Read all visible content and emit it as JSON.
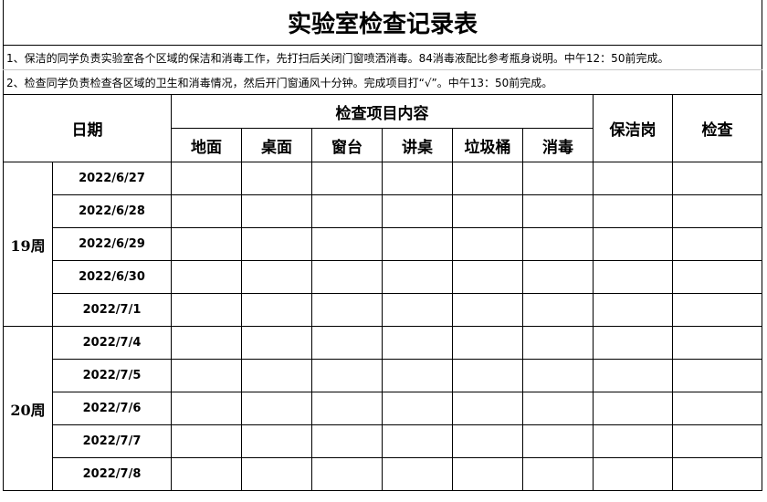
{
  "title": "实验室检查记录表",
  "notes": [
    "1、保洁的同学负责实验室各个区域的保洁和消毒工作，先打扫后关闭门窗喷洒消毒。84消毒液配比参考瓶身说明。中午12：50前完成。",
    "2、检查同学负责检查各区域的卫生和消毒情况，然后开门窗通风十分钟。完成项目打“√”。中午13：50前完成。"
  ],
  "headers": {
    "date": "日期",
    "items_group": "检查项目内容",
    "items": [
      "地面",
      "桌面",
      "窗台",
      "讲桌",
      "垃圾桶",
      "消毒"
    ],
    "cleaner": "保洁岗",
    "inspector": "检查"
  },
  "weeks": [
    {
      "label": "19周",
      "dates": [
        "2022/6/27",
        "2022/6/28",
        "2022/6/29",
        "2022/6/30",
        "2022/7/1"
      ]
    },
    {
      "label": "20周",
      "dates": [
        "2022/7/4",
        "2022/7/5",
        "2022/7/6",
        "2022/7/7",
        "2022/7/8"
      ]
    }
  ]
}
